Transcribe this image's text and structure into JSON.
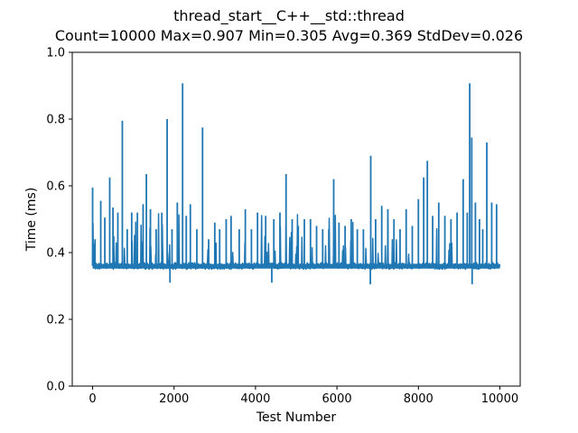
{
  "chart_data": {
    "type": "line",
    "title": "thread_start__C++__std::thread",
    "subtitle": "Count=10000 Max=0.907 Min=0.305 Avg=0.369 StdDev=0.026",
    "xlabel": "Test Number",
    "ylabel": "Time (ms)",
    "xlim": [
      -500,
      10500
    ],
    "ylim": [
      0.0,
      1.0
    ],
    "x_ticks": [
      0,
      2000,
      4000,
      6000,
      8000,
      10000
    ],
    "y_ticks": [
      0.0,
      0.2,
      0.4,
      0.6,
      0.8,
      1.0
    ],
    "x_tick_labels": [
      "0",
      "2000",
      "4000",
      "6000",
      "8000",
      "10000"
    ],
    "y_tick_labels": [
      "0.0",
      "0.2",
      "0.4",
      "0.6",
      "0.8",
      "1.0"
    ],
    "grid": false,
    "legend": false,
    "series_color": "#1f77b4",
    "count": 10000,
    "baseline": 0.36,
    "spikes": [
      {
        "x": 0,
        "y": 0.595
      },
      {
        "x": 60,
        "y": 0.44
      },
      {
        "x": 200,
        "y": 0.555
      },
      {
        "x": 300,
        "y": 0.505
      },
      {
        "x": 420,
        "y": 0.625
      },
      {
        "x": 500,
        "y": 0.535
      },
      {
        "x": 620,
        "y": 0.52
      },
      {
        "x": 730,
        "y": 0.795
      },
      {
        "x": 850,
        "y": 0.47
      },
      {
        "x": 960,
        "y": 0.52
      },
      {
        "x": 1100,
        "y": 0.52
      },
      {
        "x": 1240,
        "y": 0.545
      },
      {
        "x": 1320,
        "y": 0.635
      },
      {
        "x": 1420,
        "y": 0.53
      },
      {
        "x": 1560,
        "y": 0.47
      },
      {
        "x": 1700,
        "y": 0.52
      },
      {
        "x": 1830,
        "y": 0.8
      },
      {
        "x": 1950,
        "y": 0.47
      },
      {
        "x": 2080,
        "y": 0.55
      },
      {
        "x": 2210,
        "y": 0.907
      },
      {
        "x": 2300,
        "y": 0.51
      },
      {
        "x": 2400,
        "y": 0.545
      },
      {
        "x": 2560,
        "y": 0.47
      },
      {
        "x": 2700,
        "y": 0.775
      },
      {
        "x": 2850,
        "y": 0.44
      },
      {
        "x": 3000,
        "y": 0.49
      },
      {
        "x": 3120,
        "y": 0.47
      },
      {
        "x": 3280,
        "y": 0.5
      },
      {
        "x": 3400,
        "y": 0.51
      },
      {
        "x": 3600,
        "y": 0.47
      },
      {
        "x": 3750,
        "y": 0.53
      },
      {
        "x": 3900,
        "y": 0.47
      },
      {
        "x": 4050,
        "y": 0.52
      },
      {
        "x": 4250,
        "y": 0.51
      },
      {
        "x": 4450,
        "y": 0.5
      },
      {
        "x": 4600,
        "y": 0.52
      },
      {
        "x": 4750,
        "y": 0.635
      },
      {
        "x": 4900,
        "y": 0.5
      },
      {
        "x": 5050,
        "y": 0.48
      },
      {
        "x": 5200,
        "y": 0.5
      },
      {
        "x": 5350,
        "y": 0.5
      },
      {
        "x": 5500,
        "y": 0.48
      },
      {
        "x": 5650,
        "y": 0.47
      },
      {
        "x": 5800,
        "y": 0.47
      },
      {
        "x": 5920,
        "y": 0.62
      },
      {
        "x": 6050,
        "y": 0.49
      },
      {
        "x": 6200,
        "y": 0.48
      },
      {
        "x": 6350,
        "y": 0.5
      },
      {
        "x": 6500,
        "y": 0.47
      },
      {
        "x": 6650,
        "y": 0.47
      },
      {
        "x": 6830,
        "y": 0.69
      },
      {
        "x": 6950,
        "y": 0.5
      },
      {
        "x": 7100,
        "y": 0.54
      },
      {
        "x": 7250,
        "y": 0.53
      },
      {
        "x": 7400,
        "y": 0.5
      },
      {
        "x": 7550,
        "y": 0.47
      },
      {
        "x": 7700,
        "y": 0.53
      },
      {
        "x": 7850,
        "y": 0.48
      },
      {
        "x": 8000,
        "y": 0.56
      },
      {
        "x": 8130,
        "y": 0.625
      },
      {
        "x": 8220,
        "y": 0.675
      },
      {
        "x": 8350,
        "y": 0.51
      },
      {
        "x": 8500,
        "y": 0.55
      },
      {
        "x": 8650,
        "y": 0.51
      },
      {
        "x": 8800,
        "y": 0.5
      },
      {
        "x": 8950,
        "y": 0.52
      },
      {
        "x": 9100,
        "y": 0.62
      },
      {
        "x": 9200,
        "y": 0.52
      },
      {
        "x": 9260,
        "y": 0.907
      },
      {
        "x": 9310,
        "y": 0.745
      },
      {
        "x": 9400,
        "y": 0.55
      },
      {
        "x": 9500,
        "y": 0.5
      },
      {
        "x": 9580,
        "y": 0.47
      },
      {
        "x": 9680,
        "y": 0.73
      },
      {
        "x": 9800,
        "y": 0.55
      },
      {
        "x": 9920,
        "y": 0.545
      }
    ],
    "dips": [
      {
        "x": 1900,
        "y": 0.31
      },
      {
        "x": 4400,
        "y": 0.31
      },
      {
        "x": 6820,
        "y": 0.305
      },
      {
        "x": 9320,
        "y": 0.305
      }
    ]
  }
}
